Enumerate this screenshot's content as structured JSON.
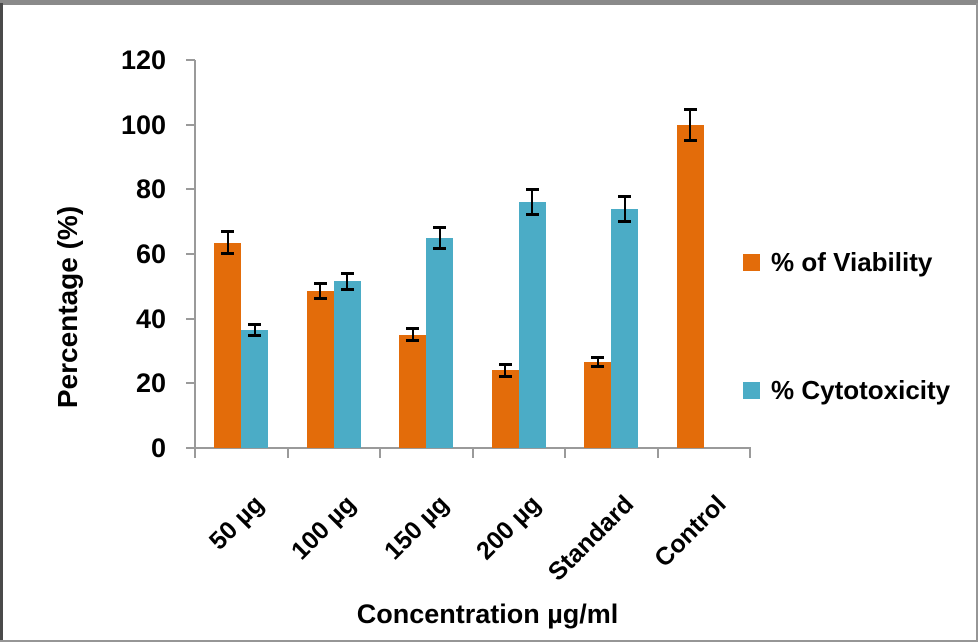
{
  "chart_data": {
    "type": "bar",
    "title": "",
    "xlabel": "Concentration µg/ml",
    "ylabel": "Percentage (%)",
    "ylim": [
      0,
      120
    ],
    "yticks": [
      0,
      20,
      40,
      60,
      80,
      100,
      120
    ],
    "grid": false,
    "legend_position": "right",
    "categories": [
      "50 µg",
      "100 µg",
      "150 µg",
      "200 µg",
      "Standard",
      "Control"
    ],
    "series": [
      {
        "id": "viability",
        "name": "% of Viability",
        "color": "#E36C0A",
        "values": [
          63.5,
          48.5,
          35,
          24,
          26.5,
          100
        ],
        "errors": [
          3.5,
          2.5,
          2,
          2,
          1.5,
          5
        ]
      },
      {
        "id": "cytotoxicity",
        "name": "% Cytotoxicity",
        "color": "#4BACC6",
        "values": [
          36.5,
          51.5,
          65,
          76,
          74,
          null
        ],
        "errors": [
          2,
          2.5,
          3.5,
          4,
          4,
          null
        ]
      }
    ],
    "error_bar_color": "#000000",
    "axis_line_color": "#9a9a9a"
  }
}
